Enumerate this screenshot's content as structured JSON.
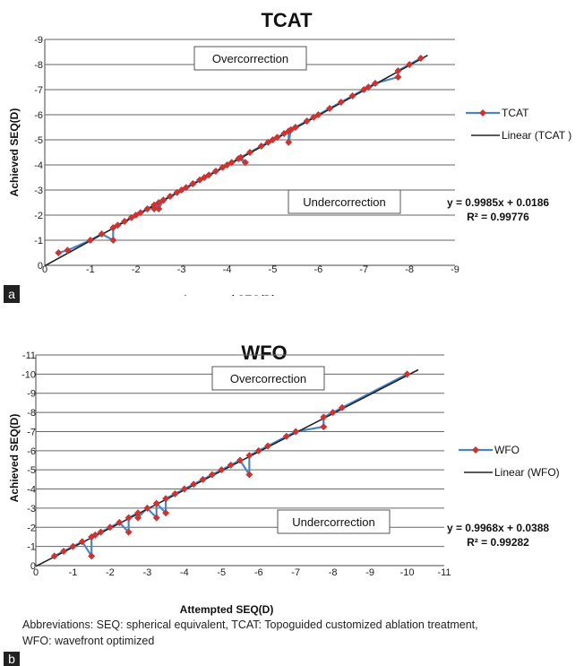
{
  "chart_data": [
    {
      "type": "line",
      "panel": "a",
      "title": "TCAT",
      "xlabel": "Attempted SEQ(D)",
      "ylabel": "Achieved SEQ(D)",
      "xlim": [
        0,
        -9
      ],
      "ylim": [
        0,
        -9
      ],
      "x_ticks": [
        "0",
        "-1",
        "-2",
        "-3",
        "-4",
        "-5",
        "-6",
        "-7",
        "-8",
        "-9"
      ],
      "y_ticks": [
        "0",
        "-1",
        "-2",
        "-3",
        "-4",
        "-5",
        "-6",
        "-7",
        "-8",
        "-9"
      ],
      "grid": "horizontal",
      "legend": "right",
      "annotations": {
        "top": "Overcorrection",
        "bottom": "Undercorrection"
      },
      "equation": "y = 0.9985x + 0.0186",
      "r2": "R² = 0.99776",
      "series": [
        {
          "name": "TCAT",
          "color": "#4a86c5",
          "marker": "diamond",
          "marker_color": "#cc3333",
          "x": [
            -0.3,
            -0.5,
            -1,
            -1.25,
            -1.5,
            -1.5,
            -1.6,
            -1.75,
            -1.9,
            -2,
            -2.1,
            -2.25,
            -2.4,
            -2.5,
            -2.6,
            -2.5,
            -2.4,
            -2.6,
            -2.75,
            -2.9,
            -3,
            -3.25,
            -3.1,
            -3.25,
            -3.4,
            -3.5,
            -3.6,
            -3.75,
            -3.9,
            -4,
            -4.1,
            -4.25,
            -4.4,
            -4.3,
            -4.5,
            -4.75,
            -4.9,
            -5,
            -5.1,
            -5.25,
            -5.35,
            -5.35,
            -5.4,
            -5.5,
            -5.75,
            -5.9,
            -6,
            -6.25,
            -6.5,
            -6.75,
            -7,
            -7.1,
            -7.25,
            -7.75,
            -7.75,
            -8,
            -8.25
          ],
          "y": [
            -0.5,
            -0.6,
            -1,
            -1.25,
            -1,
            -1.5,
            -1.6,
            -1.75,
            -1.9,
            -2,
            -2.1,
            -2.25,
            -2.4,
            -2.5,
            -2.6,
            -2.25,
            -2.25,
            -2.6,
            -2.75,
            -2.9,
            -3,
            -3.25,
            -3.1,
            -3.25,
            -3.4,
            -3.5,
            -3.6,
            -3.75,
            -3.9,
            -4,
            -4.1,
            -4.25,
            -4.1,
            -4.3,
            -4.5,
            -4.75,
            -4.9,
            -5,
            -5.1,
            -5.25,
            -5.35,
            -4.9,
            -5.4,
            -5.5,
            -5.75,
            -5.9,
            -6,
            -6.25,
            -6.5,
            -6.75,
            -7,
            -7.1,
            -7.25,
            -7.5,
            -7.75,
            -8,
            -8.25
          ]
        },
        {
          "name": "Linear  (TCAT )",
          "color": "#222222",
          "x": [
            0,
            -8.4
          ],
          "y": [
            0.0186,
            -8.3688
          ]
        }
      ]
    },
    {
      "type": "line",
      "panel": "b",
      "title": "WFO",
      "xlabel": "Attempted SEQ(D)",
      "ylabel": "Achieved SEQ(D)",
      "xlim": [
        0,
        -11
      ],
      "ylim": [
        0,
        -11
      ],
      "x_ticks": [
        "0",
        "-1",
        "-2",
        "-3",
        "-4",
        "-5",
        "-6",
        "-7",
        "-8",
        "-9",
        "-10",
        "-11"
      ],
      "y_ticks": [
        "0",
        "-1",
        "-2",
        "-3",
        "-4",
        "-5",
        "-6",
        "-7",
        "-8",
        "-9",
        "-10",
        "-11"
      ],
      "grid": "horizontal",
      "legend": "right",
      "annotations": {
        "top": "Overcorrection",
        "bottom": "Undercorrection"
      },
      "equation": "y = 0.9968x + 0.0388",
      "r2": "R² = 0.99282",
      "series": [
        {
          "name": "WFO",
          "color": "#4a86c5",
          "marker": "diamond",
          "marker_color": "#cc3333",
          "x": [
            -0.5,
            -0.75,
            -1,
            -1.25,
            -1.5,
            -1.5,
            -1.6,
            -1.75,
            -2,
            -2.25,
            -2.5,
            -2.5,
            -2.75,
            -2.75,
            -3,
            -3.25,
            -3.25,
            -3.5,
            -3.5,
            -3.75,
            -4,
            -4.25,
            -4.5,
            -4.75,
            -5,
            -5.25,
            -5.5,
            -5.75,
            -5.75,
            -6,
            -6.25,
            -6.75,
            -7,
            -7.75,
            -7.75,
            -8,
            -8.25,
            -10
          ],
          "y": [
            -0.5,
            -0.75,
            -1,
            -1.25,
            -0.5,
            -1.5,
            -1.6,
            -1.75,
            -2,
            -2.25,
            -1.75,
            -2.5,
            -2.75,
            -2.5,
            -3,
            -2.5,
            -3.25,
            -2.75,
            -3.5,
            -3.75,
            -4,
            -4.25,
            -4.5,
            -4.75,
            -5,
            -5.25,
            -5.5,
            -4.75,
            -5.75,
            -6,
            -6.25,
            -6.75,
            -7,
            -7.25,
            -7.75,
            -8,
            -8.25,
            -10
          ]
        },
        {
          "name": "Linear  (WFO)",
          "color": "#222222",
          "x": [
            0,
            -10.3
          ],
          "y": [
            0.0388,
            -10.228
          ]
        }
      ]
    }
  ],
  "panel_labels": {
    "a": "a",
    "b": "b"
  },
  "caption": {
    "line1": "Abbreviations: SEQ: spherical equivalent, TCAT: Topoguided customized ablation treatment,",
    "line2": "WFO: wavefront optimized"
  }
}
